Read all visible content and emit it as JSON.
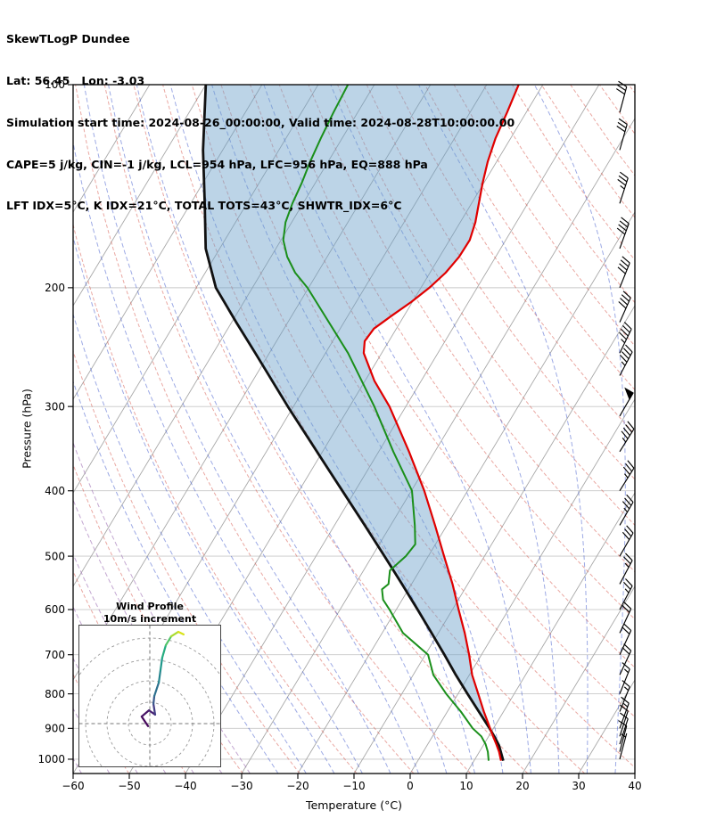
{
  "header": {
    "title": "SkewTLogP Dundee",
    "location": "Lat: 56.45   Lon: -3.03",
    "times": "Simulation start time: 2024-08-26_00:00:00, Valid time: 2024-08-28T10:00:00.00",
    "indices1": "CAPE=5 j/kg, CIN=-1 j/kg, LCL=954 hPa, LFC=956 hPa, EQ=888 hPa",
    "indices2": "LFT IDX=5°C, K IDX=21°C, TOTAL TOTS=43°C, SHWTR_IDX=6°C"
  },
  "axes": {
    "xlabel": "Temperature (°C)",
    "ylabel": "Pressure (hPa)",
    "x_ticks": [
      {
        "v": -60,
        "label": "−60"
      },
      {
        "v": -50,
        "label": "−50"
      },
      {
        "v": -40,
        "label": "−40"
      },
      {
        "v": -30,
        "label": "−30"
      },
      {
        "v": -20,
        "label": "−20"
      },
      {
        "v": -10,
        "label": "−10"
      },
      {
        "v": 0,
        "label": "0"
      },
      {
        "v": 10,
        "label": "10"
      },
      {
        "v": 20,
        "label": "20"
      },
      {
        "v": 30,
        "label": "30"
      },
      {
        "v": 40,
        "label": "40"
      }
    ],
    "y_ticks": [
      {
        "v": 100,
        "label": "100"
      },
      {
        "v": 200,
        "label": "200"
      },
      {
        "v": 300,
        "label": "300"
      },
      {
        "v": 400,
        "label": "400"
      },
      {
        "v": 500,
        "label": "500"
      },
      {
        "v": 600,
        "label": "600"
      },
      {
        "v": 700,
        "label": "700"
      },
      {
        "v": 800,
        "label": "800"
      },
      {
        "v": 900,
        "label": "900"
      },
      {
        "v": 1000,
        "label": "1000"
      }
    ]
  },
  "inset": {
    "title1": "Wind Profile",
    "title2": "10m/s increment"
  },
  "colors": {
    "temperature": "#e00000",
    "dewpoint": "#1a8f1a",
    "parcel": "#111111",
    "cape_fill": "#6a9fc9",
    "isotherm": "#a8a8a8",
    "isobar": "#c8c8c8",
    "dry_adiabat": "#d96055",
    "moist_adiabat": "#3c55cc",
    "moist_adiabat_cold": "#9b6bb3",
    "barb": "#000000",
    "frame": "#000000",
    "inset_ring": "#999999"
  },
  "chart_data": {
    "type": "skewt-logp",
    "title": "SkewTLogP Dundee",
    "xlabel": "Temperature (°C)",
    "ylabel": "Pressure (hPa)",
    "xlim": [
      -60,
      40
    ],
    "pressure_lim": [
      100,
      1050
    ],
    "grid": {
      "isotherms_c": {
        "min": -120,
        "max": 40,
        "step": 10
      },
      "dry_adiabats_k": {
        "min": 210,
        "max": 470,
        "step": 10
      },
      "moist_adiabats_start_c": {
        "min": -60,
        "max": 50,
        "step": 5
      },
      "isobars_hpa": [
        100,
        200,
        300,
        400,
        500,
        600,
        700,
        800,
        900,
        1000
      ]
    },
    "indices": {
      "CAPE_jkg": 5,
      "CIN_jkg": -1,
      "LCL_hPa": 954,
      "LFC_hPa": 956,
      "EQ_hPa": 888,
      "LFT_IDX_C": 5,
      "K_IDX_C": 21,
      "TOTAL_TOTS_C": 43,
      "SHWTR_IDX_C": 6
    },
    "temperature_profile": [
      [
        1005,
        14.8
      ],
      [
        975,
        13.5
      ],
      [
        950,
        12.2
      ],
      [
        925,
        10.8
      ],
      [
        900,
        9.4
      ],
      [
        850,
        6.5
      ],
      [
        800,
        3.6
      ],
      [
        750,
        0.5
      ],
      [
        700,
        -2.2
      ],
      [
        650,
        -5.3
      ],
      [
        600,
        -8.9
      ],
      [
        550,
        -12.7
      ],
      [
        500,
        -17.2
      ],
      [
        450,
        -22.1
      ],
      [
        400,
        -27.7
      ],
      [
        350,
        -34.6
      ],
      [
        300,
        -42.9
      ],
      [
        275,
        -48.3
      ],
      [
        250,
        -53.2
      ],
      [
        240,
        -54.3
      ],
      [
        230,
        -54.0
      ],
      [
        220,
        -52.2
      ],
      [
        210,
        -50.2
      ],
      [
        200,
        -48.5
      ],
      [
        190,
        -47.2
      ],
      [
        180,
        -46.5
      ],
      [
        170,
        -46.4
      ],
      [
        160,
        -47.3
      ],
      [
        150,
        -48.7
      ],
      [
        140,
        -50.2
      ],
      [
        130,
        -51.6
      ],
      [
        120,
        -52.7
      ],
      [
        110,
        -53.4
      ],
      [
        100,
        -54.3
      ]
    ],
    "dewpoint_profile": [
      [
        1005,
        12.6
      ],
      [
        975,
        11.5
      ],
      [
        950,
        10.3
      ],
      [
        925,
        8.7
      ],
      [
        900,
        6.3
      ],
      [
        850,
        2.4
      ],
      [
        800,
        -2.1
      ],
      [
        750,
        -6.4
      ],
      [
        700,
        -9.5
      ],
      [
        650,
        -16.3
      ],
      [
        600,
        -21.2
      ],
      [
        580,
        -23.4
      ],
      [
        560,
        -24.7
      ],
      [
        550,
        -24.1
      ],
      [
        525,
        -25.3
      ],
      [
        500,
        -24.0
      ],
      [
        480,
        -23.6
      ],
      [
        450,
        -25.7
      ],
      [
        400,
        -29.9
      ],
      [
        350,
        -37.4
      ],
      [
        300,
        -45.6
      ],
      [
        250,
        -56.0
      ],
      [
        200,
        -70.2
      ],
      [
        190,
        -74.0
      ],
      [
        180,
        -77.1
      ],
      [
        170,
        -79.6
      ],
      [
        160,
        -81.1
      ],
      [
        150,
        -81.9
      ],
      [
        140,
        -82.4
      ],
      [
        130,
        -83.2
      ],
      [
        120,
        -83.8
      ],
      [
        110,
        -84.3
      ],
      [
        100,
        -84.7
      ]
    ],
    "parcel_profile": [
      [
        1005,
        15.2
      ],
      [
        975,
        13.8
      ],
      [
        954,
        12.8
      ],
      [
        925,
        11.0
      ],
      [
        900,
        9.3
      ],
      [
        850,
        5.6
      ],
      [
        800,
        1.7
      ],
      [
        750,
        -2.4
      ],
      [
        700,
        -6.6
      ],
      [
        650,
        -11.2
      ],
      [
        600,
        -16.2
      ],
      [
        550,
        -21.7
      ],
      [
        500,
        -27.8
      ],
      [
        450,
        -34.6
      ],
      [
        400,
        -42.3
      ],
      [
        350,
        -51.0
      ],
      [
        300,
        -61.0
      ],
      [
        250,
        -72.5
      ],
      [
        225,
        -79.2
      ],
      [
        200,
        -86.5
      ],
      [
        175,
        -92.5
      ],
      [
        150,
        -97.5
      ],
      [
        125,
        -103.5
      ],
      [
        100,
        -110.0
      ]
    ],
    "wind_barbs": [
      [
        1000,
        7,
        15
      ],
      [
        975,
        9,
        15
      ],
      [
        950,
        10,
        18
      ],
      [
        925,
        12,
        18
      ],
      [
        900,
        13,
        20
      ],
      [
        850,
        15,
        22
      ],
      [
        800,
        17,
        22
      ],
      [
        750,
        18,
        25
      ],
      [
        700,
        20,
        25
      ],
      [
        650,
        22,
        25
      ],
      [
        600,
        25,
        28
      ],
      [
        550,
        27,
        28
      ],
      [
        500,
        30,
        30
      ],
      [
        450,
        33,
        30
      ],
      [
        400,
        37,
        32
      ],
      [
        350,
        43,
        32
      ],
      [
        310,
        52,
        30
      ],
      [
        270,
        47,
        28
      ],
      [
        250,
        45,
        26
      ],
      [
        225,
        42,
        24
      ],
      [
        200,
        40,
        22
      ],
      [
        175,
        38,
        20
      ],
      [
        150,
        35,
        18
      ],
      [
        125,
        32,
        16
      ],
      [
        110,
        28,
        15
      ]
    ],
    "hodograph": {
      "ring_increment_ms": 10,
      "rings_ms": [
        10,
        20,
        30,
        40
      ],
      "trace_uv_ms": [
        {
          "u": -0.8,
          "v": -1.2,
          "c": "#440154"
        },
        {
          "u": -3.8,
          "v": 3.3,
          "c": "#46085c"
        },
        {
          "u": -0.4,
          "v": 6.2,
          "c": "#471365"
        },
        {
          "u": 2.5,
          "v": 4.2,
          "c": "#482173"
        },
        {
          "u": 1.7,
          "v": 9.2,
          "c": "#433e85"
        },
        {
          "u": 2.1,
          "v": 12.9,
          "c": "#38598c"
        },
        {
          "u": 4.2,
          "v": 19.2,
          "c": "#2d708e"
        },
        {
          "u": 5.0,
          "v": 25.0,
          "c": "#25858e"
        },
        {
          "u": 5.8,
          "v": 30.8,
          "c": "#1f988b"
        },
        {
          "u": 7.5,
          "v": 36.7,
          "c": "#27ad81"
        },
        {
          "u": 10.0,
          "v": 40.8,
          "c": "#52c569"
        },
        {
          "u": 13.3,
          "v": 42.9,
          "c": "#aadc32"
        },
        {
          "u": 15.8,
          "v": 41.7,
          "c": "#d8e219"
        }
      ]
    }
  }
}
